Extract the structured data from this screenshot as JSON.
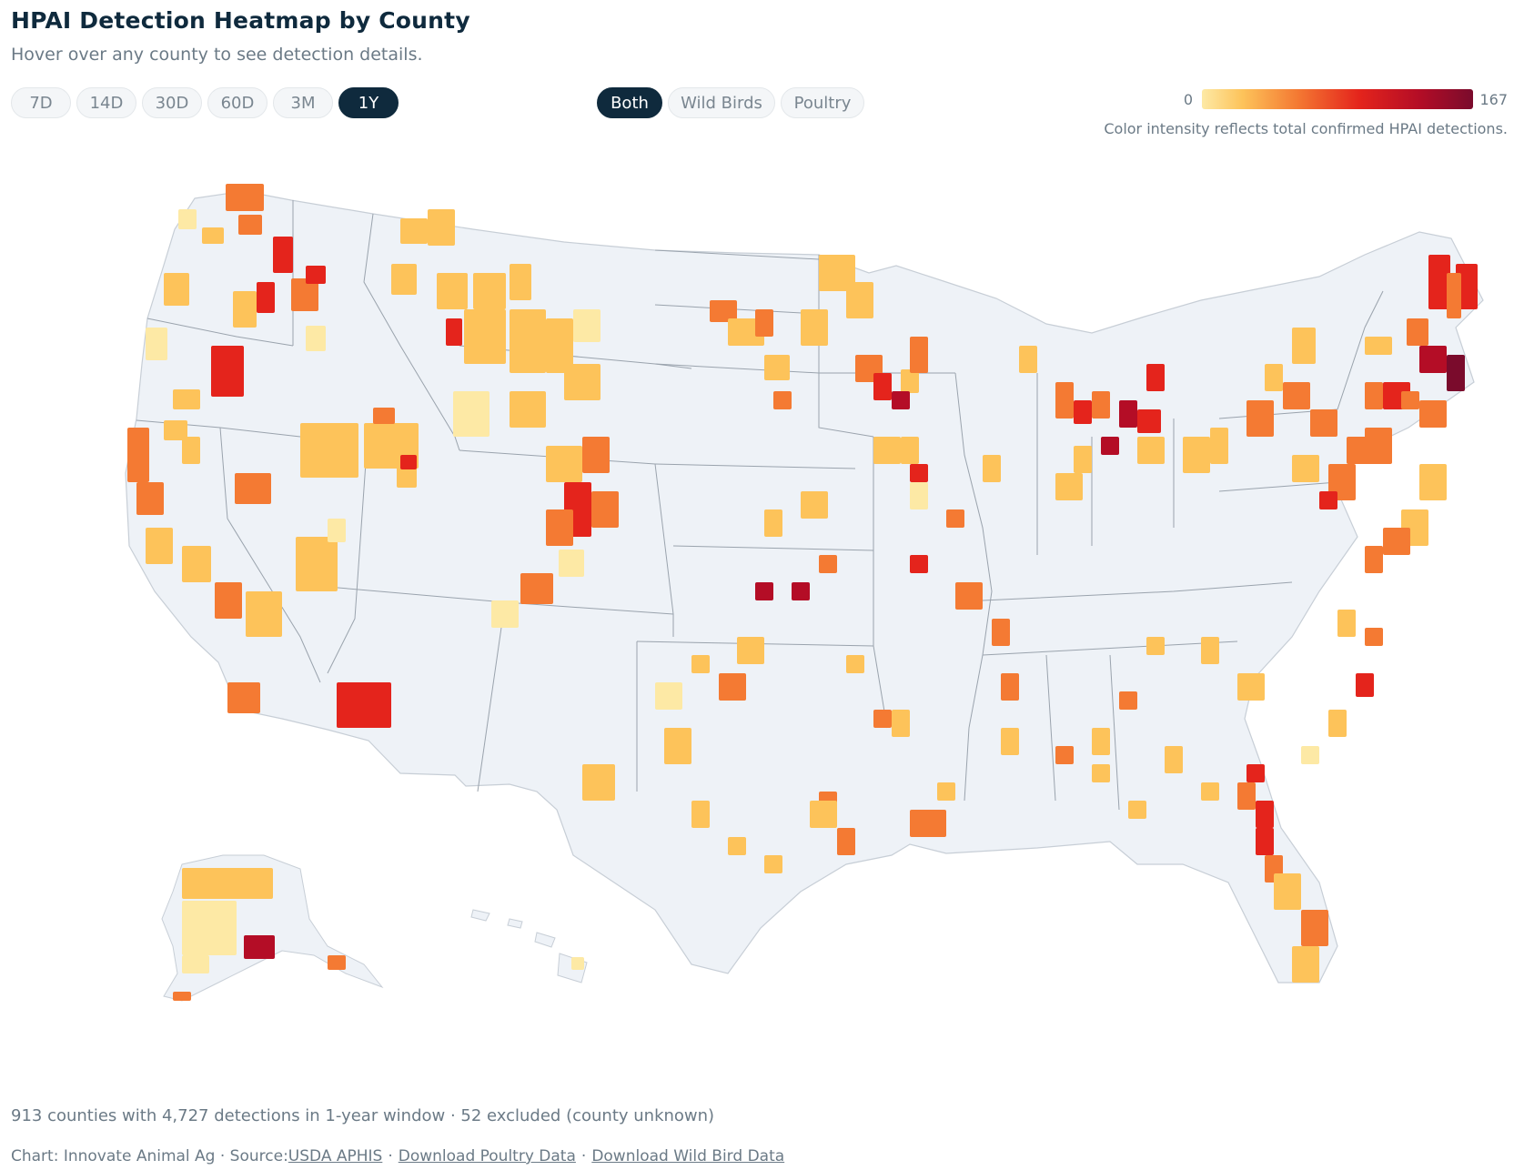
{
  "header": {
    "title": "HPAI Detection Heatmap by County",
    "subtitle": "Hover over any county to see detection details."
  },
  "time_range": {
    "options": [
      "7D",
      "14D",
      "30D",
      "60D",
      "3M",
      "1Y"
    ],
    "selected": "1Y"
  },
  "source_filter": {
    "options": [
      "Both",
      "Wild Birds",
      "Poultry"
    ],
    "selected": "Both"
  },
  "legend": {
    "min": "0",
    "max": "167",
    "note": "Color intensity reflects total confirmed HPAI detections.",
    "colors": [
      "#fde9a5",
      "#fdc35a",
      "#f47a33",
      "#e4241c",
      "#b40d26",
      "#7a0b2c"
    ]
  },
  "colors": {
    "no_data": "#eef2f7",
    "border": "#d6dde6",
    "state_border": "#9aa3ad",
    "accent": "#0f2a3d"
  },
  "summary": "913 counties with 4,727 detections in 1-year window · 52 excluded (county unknown)",
  "footer": {
    "prefix": "Chart: Innovate Animal Ag · Source: ",
    "links": [
      "USDA APHIS",
      "Download Poultry Data",
      "Download Wild Bird Data"
    ]
  }
}
